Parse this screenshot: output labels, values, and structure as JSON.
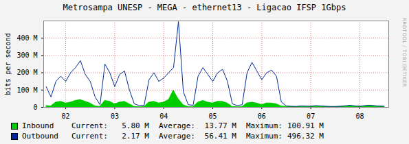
{
  "chart_data": {
    "type": "line",
    "title": "Metrosampa UNESP - MEGA - ethernet13 - Ligacao IFSP 1Gbps",
    "y_label": "bits per second",
    "credit": "RRDTOOL / TOBI OETIKER",
    "xlim": [
      1.55,
      8.59
    ],
    "xticks": [
      {
        "value": 2,
        "label": "02"
      },
      {
        "value": 3,
        "label": "03"
      },
      {
        "value": 4,
        "label": "04"
      },
      {
        "value": 5,
        "label": "05"
      },
      {
        "value": 6,
        "label": "06"
      },
      {
        "value": 7,
        "label": "07"
      },
      {
        "value": 8,
        "label": "08"
      }
    ],
    "ylim": [
      0,
      500
    ],
    "yticks": [
      0,
      {
        "value": 100,
        "label": "100 M"
      },
      {
        "value": 200,
        "label": "200 M"
      },
      {
        "value": 300,
        "label": "300 M"
      },
      {
        "value": 400,
        "label": "400 M"
      }
    ],
    "grid": true,
    "x": [
      1.6,
      1.7,
      1.8,
      1.9,
      2.0,
      2.1,
      2.2,
      2.3,
      2.4,
      2.5,
      2.6,
      2.7,
      2.8,
      2.9,
      3.0,
      3.1,
      3.2,
      3.3,
      3.4,
      3.5,
      3.6,
      3.7,
      3.8,
      3.9,
      4.0,
      4.1,
      4.2,
      4.3,
      4.4,
      4.5,
      4.6,
      4.7,
      4.8,
      4.9,
      5.0,
      5.1,
      5.2,
      5.3,
      5.4,
      5.5,
      5.6,
      5.7,
      5.8,
      5.9,
      6.0,
      6.1,
      6.2,
      6.3,
      6.4,
      6.5,
      6.6,
      6.7,
      6.8,
      6.9,
      7.0,
      7.1,
      7.2,
      7.3,
      7.4,
      7.5,
      7.6,
      7.7,
      7.8,
      7.9,
      8.0,
      8.1,
      8.2,
      8.3,
      8.4,
      8.5
    ],
    "series": [
      {
        "name": "Inbound",
        "type": "area",
        "color": "#00CC00",
        "values": [
          10,
          8,
          30,
          35,
          25,
          30,
          40,
          45,
          35,
          25,
          8,
          5,
          40,
          35,
          20,
          30,
          35,
          20,
          5,
          3,
          4,
          30,
          35,
          25,
          30,
          45,
          101,
          50,
          15,
          4,
          3,
          30,
          40,
          30,
          25,
          35,
          35,
          25,
          5,
          3,
          4,
          25,
          30,
          25,
          15,
          25,
          25,
          20,
          8,
          5,
          5,
          4,
          6,
          6,
          5,
          7,
          6,
          5,
          4,
          4,
          5,
          6,
          8,
          7,
          6,
          8,
          10,
          9,
          7,
          6
        ],
        "stats": [
          {
            "name": "Current:",
            "value": 5.8,
            "label": "5.80 M"
          },
          {
            "name": "Average:",
            "value": 13.77,
            "label": "13.77 M"
          },
          {
            "name": "Maximum:",
            "value": 100.91,
            "label": "100.91 M"
          }
        ]
      },
      {
        "name": "Outbound",
        "type": "line",
        "color": "#002A97",
        "values": [
          120,
          60,
          150,
          180,
          150,
          200,
          230,
          270,
          190,
          150,
          60,
          15,
          250,
          200,
          120,
          190,
          210,
          100,
          20,
          10,
          12,
          160,
          200,
          150,
          170,
          200,
          230,
          496,
          90,
          15,
          12,
          180,
          230,
          190,
          150,
          200,
          220,
          150,
          20,
          10,
          15,
          200,
          260,
          210,
          160,
          200,
          215,
          180,
          30,
          8,
          6,
          5,
          8,
          7,
          6,
          10,
          8,
          6,
          5,
          5,
          6,
          9,
          12,
          8,
          6,
          10,
          12,
          9,
          7,
          6
        ],
        "stats": [
          {
            "name": "Current:",
            "value": 2.17,
            "label": "2.17 M"
          },
          {
            "name": "Average:",
            "value": 56.41,
            "label": "56.41 M"
          },
          {
            "name": "Maximum:",
            "value": 496.32,
            "label": "496.32 M"
          }
        ]
      }
    ]
  }
}
